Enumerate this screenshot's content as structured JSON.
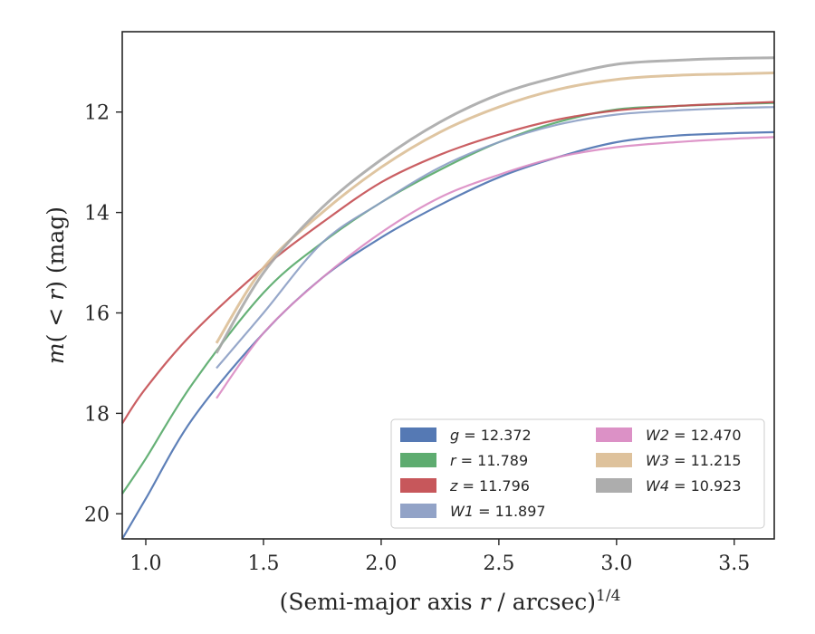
{
  "chart_data": {
    "type": "line",
    "xlabel": "(Semi-major axis r / arcsec)",
    "xlabel_parts": {
      "pre": "(Semi-major axis ",
      "italic": "r",
      "post": " / arcsec)",
      "superscript": "1/4"
    },
    "ylabel": "m(<r) (mag)",
    "ylabel_parts": {
      "m": "m",
      "open": "( ",
      "lt": "<",
      "r": "r",
      "close": ")",
      "unit": " (mag)"
    },
    "xlim": [
      0.9,
      3.67
    ],
    "ylim": [
      20.5,
      10.4
    ],
    "y_inverted": true,
    "x_ticks": [
      "1.0",
      "1.5",
      "2.0",
      "2.5",
      "3.0",
      "3.5"
    ],
    "x_tick_values": [
      1.0,
      1.5,
      2.0,
      2.5,
      3.0,
      3.5
    ],
    "y_ticks": [
      "12",
      "14",
      "16",
      "18",
      "20"
    ],
    "y_tick_values": [
      12,
      14,
      16,
      18,
      20
    ],
    "grid": false,
    "legend_position": "lower-right",
    "legend": [
      {
        "band": "g",
        "value": "12.372",
        "color": "#4c72b0"
      },
      {
        "band": "r",
        "value": "11.789",
        "color": "#55a868"
      },
      {
        "band": "z",
        "value": "11.796",
        "color": "#c44e52"
      },
      {
        "band": "W1",
        "value": "11.897",
        "color": "#8c9ec4"
      },
      {
        "band": "W2",
        "value": "12.470",
        "color": "#da8bc3"
      },
      {
        "band": "W3",
        "value": "11.215",
        "color": "#dcbf97"
      },
      {
        "band": "W4",
        "value": "10.923",
        "color": "#a9a9a9"
      }
    ],
    "series": [
      {
        "name": "g",
        "color": "#4c72b0",
        "x": [
          0.9,
          1.0,
          1.2,
          1.5,
          1.75,
          2.0,
          2.25,
          2.5,
          2.75,
          3.0,
          3.25,
          3.5,
          3.67
        ],
        "y": [
          20.5,
          19.7,
          18.1,
          16.4,
          15.3,
          14.5,
          13.85,
          13.3,
          12.9,
          12.6,
          12.47,
          12.42,
          12.4
        ]
      },
      {
        "name": "r",
        "color": "#55a868",
        "x": [
          0.9,
          1.0,
          1.2,
          1.5,
          1.75,
          2.0,
          2.25,
          2.5,
          2.75,
          3.0,
          3.25,
          3.5,
          3.67
        ],
        "y": [
          19.6,
          18.9,
          17.4,
          15.6,
          14.6,
          13.8,
          13.15,
          12.6,
          12.2,
          11.95,
          11.88,
          11.84,
          11.82
        ]
      },
      {
        "name": "z",
        "color": "#c44e52",
        "x": [
          0.9,
          1.0,
          1.2,
          1.5,
          1.75,
          2.0,
          2.25,
          2.5,
          2.75,
          3.0,
          3.25,
          3.5,
          3.67
        ],
        "y": [
          18.2,
          17.5,
          16.4,
          15.1,
          14.2,
          13.4,
          12.85,
          12.45,
          12.15,
          11.97,
          11.88,
          11.83,
          11.8
        ]
      },
      {
        "name": "W1",
        "color": "#8c9ec4",
        "x": [
          1.3,
          1.5,
          1.75,
          2.0,
          2.25,
          2.5,
          2.75,
          3.0,
          3.25,
          3.5,
          3.67
        ],
        "y": [
          17.1,
          16.0,
          14.6,
          13.8,
          13.1,
          12.6,
          12.25,
          12.05,
          11.97,
          11.92,
          11.9
        ]
      },
      {
        "name": "W2",
        "color": "#da8bc3",
        "x": [
          1.3,
          1.5,
          1.75,
          2.0,
          2.25,
          2.5,
          2.75,
          3.0,
          3.25,
          3.5,
          3.67
        ],
        "y": [
          17.7,
          16.4,
          15.3,
          14.4,
          13.7,
          13.25,
          12.9,
          12.7,
          12.6,
          12.53,
          12.5
        ]
      },
      {
        "name": "W3",
        "color": "#dcbf97",
        "x": [
          1.3,
          1.5,
          1.75,
          2.0,
          2.25,
          2.5,
          2.75,
          3.0,
          3.25,
          3.5,
          3.67
        ],
        "y": [
          16.6,
          15.1,
          14.0,
          13.1,
          12.4,
          11.9,
          11.55,
          11.35,
          11.27,
          11.24,
          11.22
        ]
      },
      {
        "name": "W4",
        "color": "#a9a9a9",
        "x": [
          1.3,
          1.5,
          1.75,
          2.0,
          2.25,
          2.5,
          2.75,
          3.0,
          3.25,
          3.5,
          3.67
        ],
        "y": [
          16.8,
          15.2,
          13.9,
          12.95,
          12.2,
          11.65,
          11.3,
          11.05,
          10.97,
          10.93,
          10.92
        ]
      }
    ]
  }
}
